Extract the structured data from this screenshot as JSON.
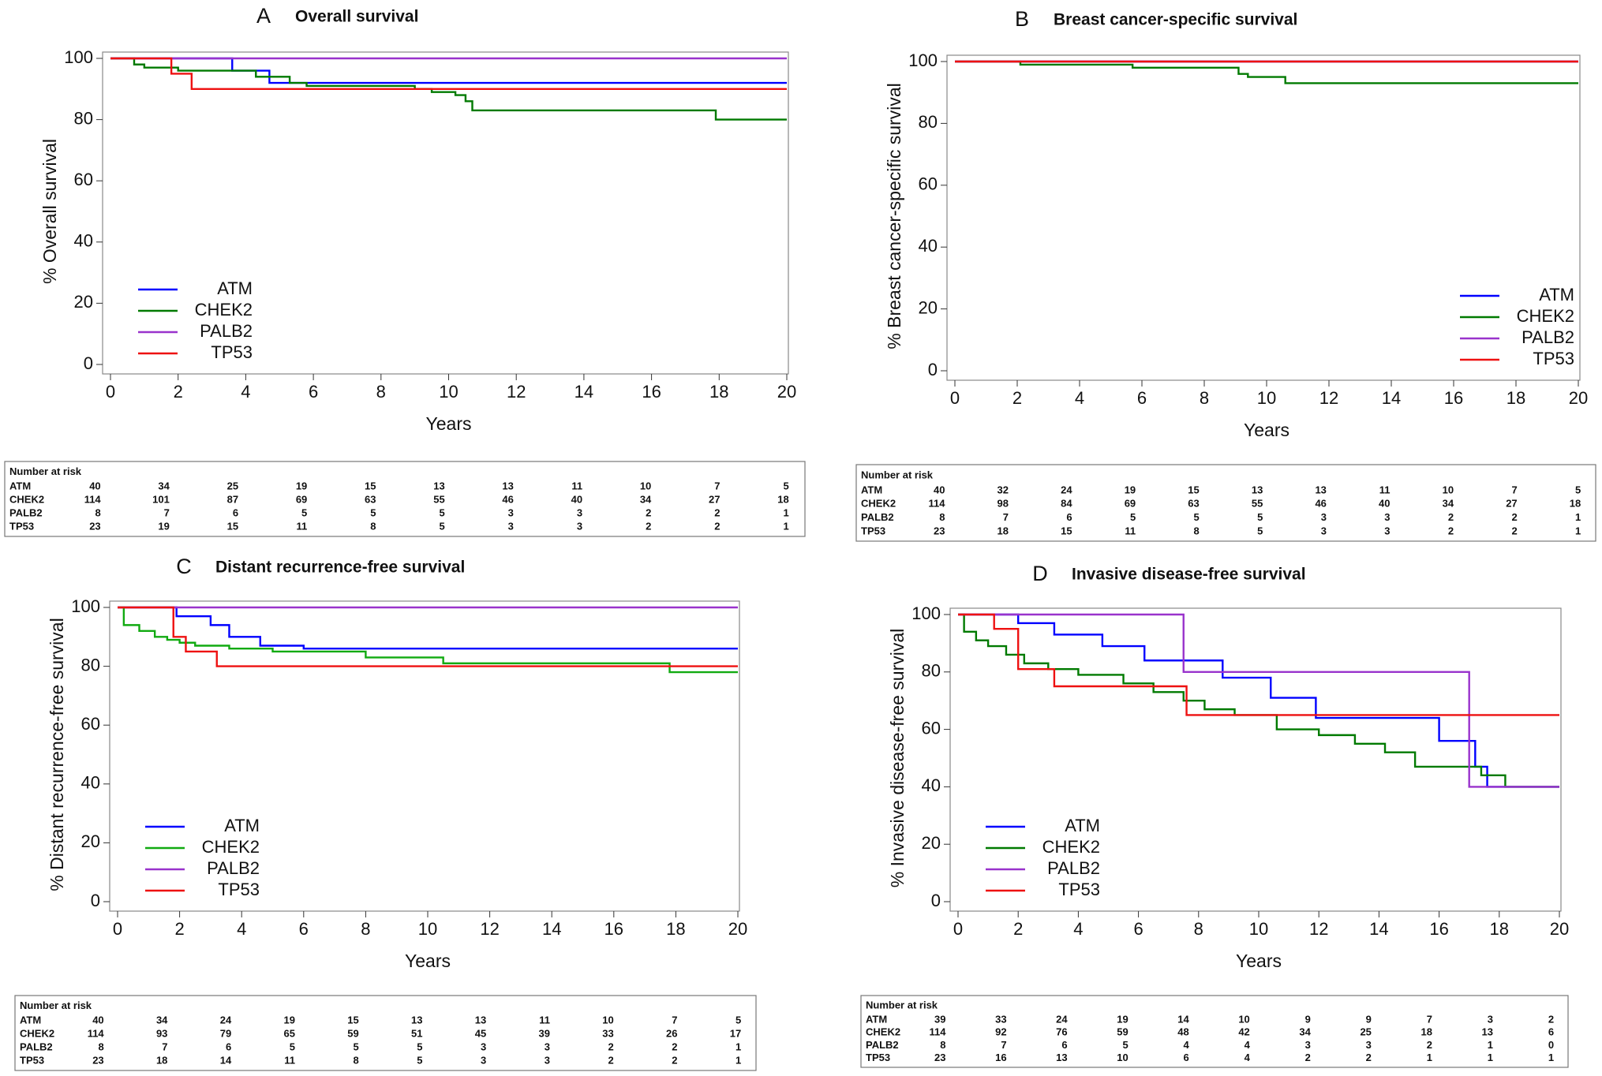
{
  "chart_data": [
    {
      "type": "line",
      "panel": "A",
      "title": "Overall survival",
      "xlabel": "Years",
      "ylabel": "% Overall survival",
      "xlim": [
        0,
        20
      ],
      "ylim": [
        0,
        100
      ],
      "xticks": [
        0,
        2,
        4,
        6,
        8,
        10,
        12,
        14,
        16,
        18,
        20
      ],
      "yticks": [
        0,
        20,
        40,
        60,
        80,
        100
      ],
      "legend": "lower left",
      "series": [
        {
          "name": "ATM",
          "color": "#0000ff",
          "x": [
            0,
            3.6,
            4.7,
            20
          ],
          "values": [
            100,
            96,
            92,
            92
          ]
        },
        {
          "name": "CHEK2",
          "color": "#007a00",
          "x": [
            0,
            0.7,
            1.0,
            2.0,
            4.3,
            5.3,
            5.8,
            9.0,
            9.5,
            10.2,
            10.5,
            10.7,
            17.9,
            20
          ],
          "values": [
            100,
            98,
            97,
            96,
            94,
            92,
            91,
            90,
            89,
            88,
            86,
            83,
            80,
            80
          ]
        },
        {
          "name": "PALB2",
          "color": "#9933cc",
          "x": [
            0,
            20
          ],
          "values": [
            100,
            100
          ]
        },
        {
          "name": "TP53",
          "color": "#ee1111",
          "x": [
            0,
            1.8,
            2.4,
            20
          ],
          "values": [
            100,
            95,
            90,
            90
          ]
        }
      ],
      "risk_table": {
        "title": "Number at risk",
        "rows": [
          {
            "name": "ATM",
            "values": [
              40,
              34,
              25,
              19,
              15,
              13,
              13,
              11,
              10,
              7,
              5
            ]
          },
          {
            "name": "CHEK2",
            "values": [
              114,
              101,
              87,
              69,
              63,
              55,
              46,
              40,
              34,
              27,
              18
            ]
          },
          {
            "name": "PALB2",
            "values": [
              8,
              7,
              6,
              5,
              5,
              5,
              3,
              3,
              2,
              2,
              1
            ]
          },
          {
            "name": "TP53",
            "values": [
              23,
              19,
              15,
              11,
              8,
              5,
              3,
              3,
              2,
              2,
              1
            ]
          }
        ]
      }
    },
    {
      "type": "line",
      "panel": "B",
      "title": "Breast cancer-specific survival",
      "xlabel": "Years",
      "ylabel": "% Breast cancer-specific survival",
      "xlim": [
        0,
        20
      ],
      "ylim": [
        0,
        100
      ],
      "xticks": [
        0,
        2,
        4,
        6,
        8,
        10,
        12,
        14,
        16,
        18,
        20
      ],
      "yticks": [
        0,
        20,
        40,
        60,
        80,
        100
      ],
      "legend": "lower right",
      "series": [
        {
          "name": "ATM",
          "color": "#0000ff",
          "x": [
            0,
            20
          ],
          "values": [
            100,
            100
          ]
        },
        {
          "name": "CHEK2",
          "color": "#007a00",
          "x": [
            0,
            2.1,
            5.7,
            9.1,
            9.4,
            10.6,
            20
          ],
          "values": [
            100,
            99,
            98,
            96,
            95,
            93,
            93
          ]
        },
        {
          "name": "PALB2",
          "color": "#9933cc",
          "x": [
            0,
            20
          ],
          "values": [
            100,
            100
          ]
        },
        {
          "name": "TP53",
          "color": "#ee1111",
          "x": [
            0,
            20
          ],
          "values": [
            100,
            100
          ]
        }
      ],
      "risk_table": {
        "title": "Number at risk",
        "rows": [
          {
            "name": "ATM",
            "values": [
              40,
              32,
              24,
              19,
              15,
              13,
              13,
              11,
              10,
              7,
              5
            ]
          },
          {
            "name": "CHEK2",
            "values": [
              114,
              98,
              84,
              69,
              63,
              55,
              46,
              40,
              34,
              27,
              18
            ]
          },
          {
            "name": "PALB2",
            "values": [
              8,
              7,
              6,
              5,
              5,
              5,
              3,
              3,
              2,
              2,
              1
            ]
          },
          {
            "name": "TP53",
            "values": [
              23,
              18,
              15,
              11,
              8,
              5,
              3,
              3,
              2,
              2,
              1
            ]
          }
        ]
      }
    },
    {
      "type": "line",
      "panel": "C",
      "title": "Distant recurrence-free survival",
      "xlabel": "Years",
      "ylabel": "% Distant recurrence-free survival",
      "xlim": [
        0,
        20
      ],
      "ylim": [
        0,
        100
      ],
      "xticks": [
        0,
        2,
        4,
        6,
        8,
        10,
        12,
        14,
        16,
        18,
        20
      ],
      "yticks": [
        0,
        20,
        40,
        60,
        80,
        100
      ],
      "legend": "lower left",
      "series": [
        {
          "name": "ATM",
          "color": "#0000ff",
          "x": [
            0,
            1.9,
            3.0,
            3.6,
            4.6,
            6.0,
            20
          ],
          "values": [
            100,
            97,
            94,
            90,
            87,
            86,
            86
          ]
        },
        {
          "name": "CHEK2",
          "color": "#11aa11",
          "x": [
            0,
            0.2,
            0.7,
            1.2,
            1.6,
            2.0,
            2.5,
            3.6,
            5.0,
            8.0,
            10.5,
            17.8,
            20
          ],
          "values": [
            100,
            94,
            92,
            90,
            89,
            88,
            87,
            86,
            85,
            83,
            81,
            78,
            78
          ]
        },
        {
          "name": "PALB2",
          "color": "#9933cc",
          "x": [
            0,
            20
          ],
          "values": [
            100,
            100
          ]
        },
        {
          "name": "TP53",
          "color": "#ee1111",
          "x": [
            0,
            1.8,
            2.2,
            3.2,
            20
          ],
          "values": [
            100,
            90,
            85,
            80,
            80
          ]
        }
      ],
      "risk_table": {
        "title": "Number at risk",
        "rows": [
          {
            "name": "ATM",
            "values": [
              40,
              34,
              24,
              19,
              15,
              13,
              13,
              11,
              10,
              7,
              5
            ]
          },
          {
            "name": "CHEK2",
            "values": [
              114,
              93,
              79,
              65,
              59,
              51,
              45,
              39,
              33,
              26,
              17
            ]
          },
          {
            "name": "PALB2",
            "values": [
              8,
              7,
              6,
              5,
              5,
              5,
              3,
              3,
              2,
              2,
              1
            ]
          },
          {
            "name": "TP53",
            "values": [
              23,
              18,
              14,
              11,
              8,
              5,
              3,
              3,
              2,
              2,
              1
            ]
          }
        ]
      }
    },
    {
      "type": "line",
      "panel": "D",
      "title": "Invasive disease-free survival",
      "xlabel": "Years",
      "ylabel": "% Invasive disease-free survival",
      "xlim": [
        0,
        20
      ],
      "ylim": [
        0,
        100
      ],
      "xticks": [
        0,
        2,
        4,
        6,
        8,
        10,
        12,
        14,
        16,
        18,
        20
      ],
      "yticks": [
        0,
        20,
        40,
        60,
        80,
        100
      ],
      "legend": "lower left",
      "series": [
        {
          "name": "ATM",
          "color": "#0000ff",
          "x": [
            0,
            2.0,
            3.2,
            4.8,
            6.2,
            8.8,
            10.4,
            11.9,
            16.0,
            17.2,
            17.6,
            20
          ],
          "values": [
            100,
            97,
            93,
            89,
            84,
            78,
            71,
            64,
            56,
            47,
            40,
            40
          ]
        },
        {
          "name": "CHEK2",
          "color": "#007a00",
          "x": [
            0,
            0.2,
            0.6,
            1.0,
            1.6,
            2.2,
            3.0,
            4.0,
            5.5,
            6.5,
            7.5,
            8.2,
            9.2,
            10.6,
            12.0,
            13.2,
            14.2,
            15.2,
            17.4,
            18.2,
            20
          ],
          "values": [
            100,
            94,
            91,
            89,
            86,
            83,
            81,
            79,
            76,
            73,
            70,
            67,
            65,
            60,
            58,
            55,
            52,
            47,
            44,
            40,
            40
          ]
        },
        {
          "name": "PALB2",
          "color": "#9933cc",
          "x": [
            0,
            7.5,
            17.0,
            20
          ],
          "values": [
            100,
            80,
            40,
            40
          ]
        },
        {
          "name": "TP53",
          "color": "#ee1111",
          "x": [
            0,
            1.2,
            2.0,
            3.2,
            7.6,
            20
          ],
          "values": [
            100,
            95,
            81,
            75,
            65,
            65
          ]
        }
      ],
      "risk_table": {
        "title": "Number at risk",
        "rows": [
          {
            "name": "ATM",
            "values": [
              39,
              33,
              24,
              19,
              14,
              10,
              9,
              9,
              7,
              3,
              2
            ]
          },
          {
            "name": "CHEK2",
            "values": [
              114,
              92,
              76,
              59,
              48,
              42,
              34,
              25,
              18,
              13,
              6
            ]
          },
          {
            "name": "PALB2",
            "values": [
              8,
              7,
              6,
              5,
              4,
              4,
              3,
              3,
              2,
              1,
              0
            ]
          },
          {
            "name": "TP53",
            "values": [
              23,
              16,
              13,
              10,
              6,
              4,
              2,
              2,
              1,
              1,
              1
            ]
          }
        ]
      }
    }
  ]
}
